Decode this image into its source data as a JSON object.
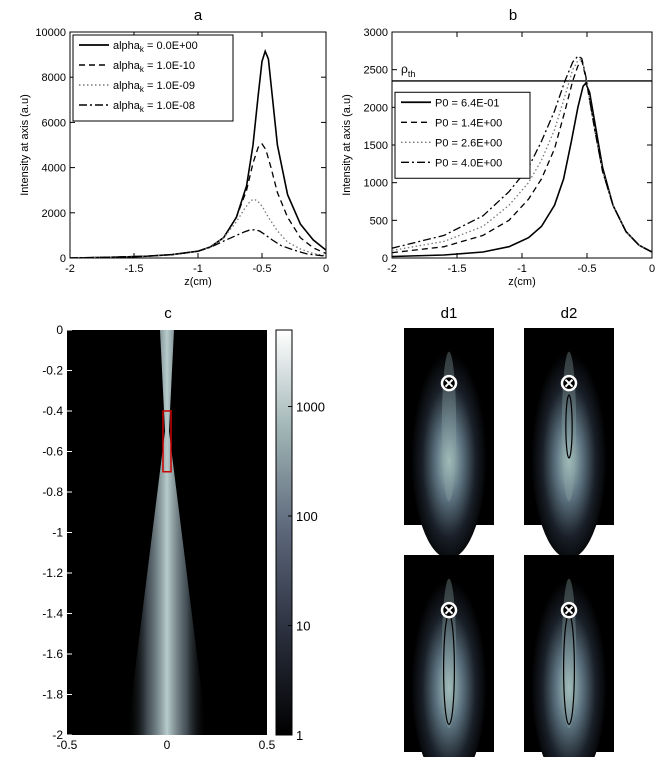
{
  "panels": {
    "a": {
      "title": "a"
    },
    "b": {
      "title": "b"
    },
    "c": {
      "title": "c"
    },
    "d1": {
      "title": "d1"
    },
    "d2": {
      "title": "d2"
    }
  },
  "chart_data": [
    {
      "id": "a",
      "type": "line",
      "title": "a",
      "xlabel": "z(cm)",
      "ylabel": "Intensity at axis (a.u)",
      "xlim": [
        -2,
        0
      ],
      "ylim": [
        0,
        10000
      ],
      "xticks": [
        -2,
        -1.5,
        -1,
        -0.5,
        0
      ],
      "yticks": [
        0,
        2000,
        4000,
        6000,
        8000,
        10000
      ],
      "legend_position": "top-left",
      "series": [
        {
          "name": "alpha_k = 0.0E+00",
          "legend_main": "alpha",
          "legend_sub": "k",
          "legend_value": " = 0.0E+00",
          "style": "solid",
          "x": [
            -2,
            -1.7,
            -1.4,
            -1.2,
            -1.0,
            -0.9,
            -0.8,
            -0.7,
            -0.62,
            -0.57,
            -0.53,
            -0.5,
            -0.475,
            -0.45,
            -0.42,
            -0.38,
            -0.3,
            -0.2,
            -0.1,
            0
          ],
          "y": [
            0,
            30,
            80,
            150,
            300,
            500,
            900,
            1800,
            3200,
            5000,
            7200,
            8700,
            9150,
            8800,
            7200,
            5000,
            2800,
            1500,
            800,
            350
          ]
        },
        {
          "name": "alpha_k = 1.0E-10",
          "legend_main": "alpha",
          "legend_sub": "k",
          "legend_value": " = 1.0E-10",
          "style": "dashed",
          "x": [
            -2,
            -1.7,
            -1.4,
            -1.2,
            -1.0,
            -0.9,
            -0.8,
            -0.7,
            -0.62,
            -0.57,
            -0.53,
            -0.5,
            -0.47,
            -0.43,
            -0.38,
            -0.3,
            -0.2,
            -0.1,
            0
          ],
          "y": [
            0,
            30,
            80,
            150,
            300,
            500,
            900,
            1800,
            3000,
            4200,
            4900,
            5050,
            4800,
            4000,
            2900,
            1800,
            900,
            450,
            200
          ]
        },
        {
          "name": "alpha_k = 1.0E-09",
          "legend_main": "alpha",
          "legend_sub": "k",
          "legend_value": " = 1.0E-09",
          "style": "dotted",
          "x": [
            -2,
            -1.7,
            -1.4,
            -1.2,
            -1.0,
            -0.9,
            -0.8,
            -0.7,
            -0.64,
            -0.6,
            -0.57,
            -0.54,
            -0.5,
            -0.45,
            -0.38,
            -0.3,
            -0.2,
            -0.1,
            0
          ],
          "y": [
            0,
            30,
            80,
            150,
            300,
            500,
            900,
            1600,
            2150,
            2450,
            2600,
            2550,
            2300,
            1800,
            1200,
            700,
            400,
            200,
            100
          ]
        },
        {
          "name": "alpha_k = 1.0E-08",
          "legend_main": "alpha",
          "legend_sub": "k",
          "legend_value": " = 1.0E-08",
          "style": "dashdot",
          "x": [
            -2,
            -1.7,
            -1.4,
            -1.2,
            -1.0,
            -0.9,
            -0.8,
            -0.7,
            -0.64,
            -0.6,
            -0.56,
            -0.52,
            -0.48,
            -0.42,
            -0.35,
            -0.25,
            -0.15,
            0
          ],
          "y": [
            0,
            30,
            80,
            150,
            300,
            480,
            750,
            1000,
            1150,
            1230,
            1250,
            1200,
            1050,
            800,
            550,
            350,
            180,
            80
          ]
        }
      ]
    },
    {
      "id": "b",
      "type": "line",
      "title": "b",
      "xlabel": "z(cm)",
      "ylabel": "Intensity at axis (a.u)",
      "xlim": [
        -2,
        0
      ],
      "ylim": [
        0,
        3000
      ],
      "xticks": [
        -2,
        -1.5,
        -1,
        -0.5,
        0
      ],
      "yticks": [
        0,
        500,
        1000,
        1500,
        2000,
        2500,
        3000
      ],
      "legend_position": "middle-left",
      "threshold": {
        "y": 2350,
        "label_main": "ρ",
        "label_sub": "th"
      },
      "series": [
        {
          "name": "P0 = 6.4E-01",
          "style": "solid",
          "x": [
            -2,
            -1.6,
            -1.3,
            -1.1,
            -0.95,
            -0.85,
            -0.75,
            -0.68,
            -0.62,
            -0.57,
            -0.53,
            -0.51,
            -0.48,
            -0.44,
            -0.38,
            -0.3,
            -0.2,
            -0.1,
            0
          ],
          "y": [
            20,
            40,
            80,
            150,
            270,
            420,
            700,
            1050,
            1550,
            2000,
            2280,
            2320,
            2200,
            1800,
            1200,
            700,
            350,
            170,
            80
          ]
        },
        {
          "name": "P0 = 1.4E+00",
          "style": "dashed",
          "x": [
            -2,
            -1.6,
            -1.3,
            -1.1,
            -0.95,
            -0.85,
            -0.75,
            -0.67,
            -0.61,
            -0.57,
            -0.54,
            -0.51,
            -0.48,
            -0.44,
            -0.38,
            -0.3,
            -0.2,
            -0.1,
            0
          ],
          "y": [
            70,
            150,
            300,
            500,
            780,
            1050,
            1450,
            1950,
            2350,
            2550,
            2620,
            2400,
            2100,
            1700,
            1150,
            700,
            350,
            170,
            80
          ]
        },
        {
          "name": "P0 = 2.6E+00",
          "style": "dotted",
          "x": [
            -2,
            -1.6,
            -1.3,
            -1.1,
            -0.95,
            -0.85,
            -0.75,
            -0.67,
            -0.61,
            -0.57,
            -0.54,
            -0.51,
            -0.48,
            -0.44,
            -0.38,
            -0.3,
            -0.2,
            -0.1,
            0
          ],
          "y": [
            100,
            220,
            420,
            700,
            1000,
            1300,
            1700,
            2150,
            2500,
            2620,
            2640,
            2420,
            2100,
            1700,
            1150,
            700,
            350,
            170,
            80
          ]
        },
        {
          "name": "P0 = 4.0E+00",
          "style": "dashdot",
          "x": [
            -2,
            -1.6,
            -1.3,
            -1.1,
            -0.95,
            -0.85,
            -0.75,
            -0.67,
            -0.61,
            -0.57,
            -0.54,
            -0.51,
            -0.48,
            -0.44,
            -0.38,
            -0.3,
            -0.2,
            -0.1,
            0
          ],
          "y": [
            130,
            300,
            560,
            880,
            1200,
            1550,
            1950,
            2350,
            2600,
            2680,
            2650,
            2420,
            2100,
            1700,
            1150,
            700,
            350,
            170,
            80
          ]
        }
      ]
    },
    {
      "id": "c",
      "type": "heatmap",
      "title": "c",
      "xlim": [
        -0.5,
        0.5
      ],
      "ylim": [
        -2,
        0
      ],
      "xticks": [
        -0.5,
        0,
        0.5
      ],
      "yticks": [
        0,
        -0.2,
        -0.4,
        -0.6,
        -0.8,
        -1,
        -1.2,
        -1.4,
        -1.6,
        -1.8,
        -2
      ],
      "colorbar": {
        "scale": "log",
        "range": [
          1,
          5000
        ],
        "ticks": [
          1,
          10,
          100,
          1000
        ]
      },
      "beam": {
        "waist_z": -0.5,
        "waist_halfwidth": 0.01,
        "top_halfwidth": 0.035,
        "bottom_halfwidth": 0.2
      },
      "highlight_box": {
        "x": [
          -0.02,
          0.02
        ],
        "y": [
          -0.7,
          -0.4
        ],
        "color": "#cc0000"
      }
    },
    {
      "id": "d",
      "type": "heatmap",
      "panels": [
        {
          "label": "d1",
          "row": 0,
          "col": 0,
          "marker_z": 0.28,
          "ellipse": null
        },
        {
          "label": "d2",
          "row": 0,
          "col": 1,
          "marker_z": 0.28,
          "ellipse": {
            "cz": 0.5,
            "rz": 0.16,
            "rx": 0.035
          }
        },
        {
          "row": 1,
          "col": 0,
          "marker_z": 0.28,
          "ellipse": {
            "cz": 0.58,
            "rz": 0.28,
            "rx": 0.06
          }
        },
        {
          "row": 1,
          "col": 1,
          "marker_z": 0.28,
          "ellipse": {
            "cz": 0.58,
            "rz": 0.28,
            "rx": 0.06
          }
        }
      ]
    }
  ]
}
